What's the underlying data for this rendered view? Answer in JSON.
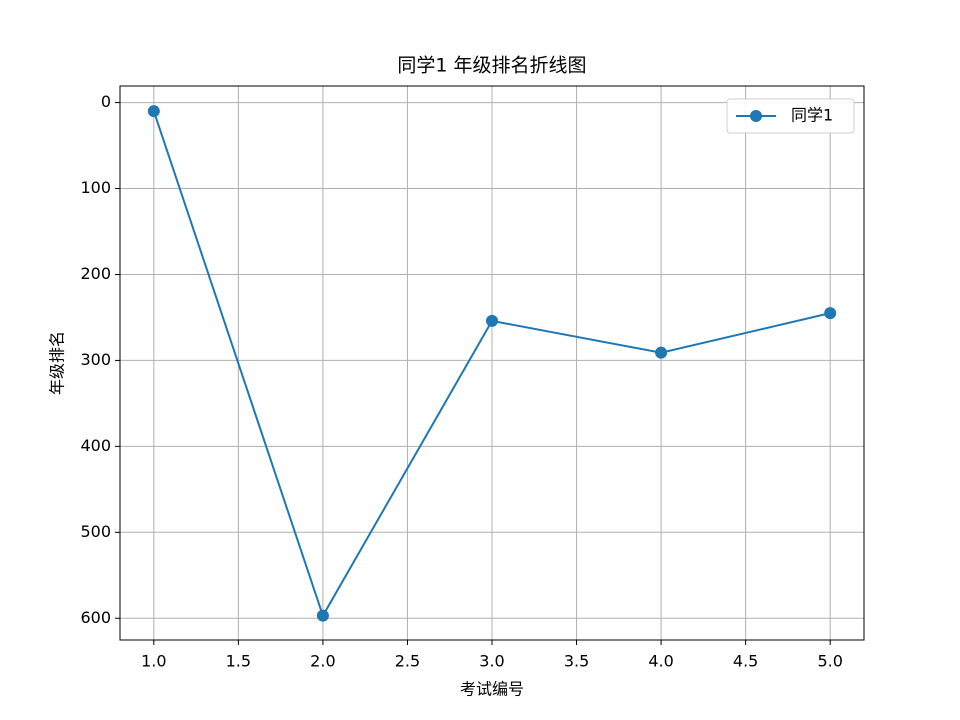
{
  "chart_data": {
    "type": "line",
    "title": "同学1 年级排名折线图",
    "x_label": "考试编号",
    "y_label": "年级排名",
    "x": [
      1,
      2,
      3,
      4,
      5
    ],
    "series": [
      {
        "name": "同学1",
        "color": "#1f77b4",
        "values": [
          10,
          597,
          254,
          291,
          245
        ]
      }
    ],
    "xlim": [
      0.8,
      5.2
    ],
    "xticks": [
      {
        "value": 1,
        "label": "1.0"
      },
      {
        "value": 1.5,
        "label": "1.5"
      },
      {
        "value": 2,
        "label": "2.0"
      },
      {
        "value": 2.5,
        "label": "2.5"
      },
      {
        "value": 3,
        "label": "3.0"
      },
      {
        "value": 3.5,
        "label": "3.5"
      },
      {
        "value": 4,
        "label": "4.0"
      },
      {
        "value": 4.5,
        "label": "4.5"
      },
      {
        "value": 5,
        "label": "5.0"
      }
    ],
    "ylim": [
      -19.3,
      625.3
    ],
    "y_inverted": true,
    "yticks": [
      0,
      100,
      200,
      300,
      400,
      500,
      600
    ],
    "grid": true,
    "legend": "upper right"
  }
}
